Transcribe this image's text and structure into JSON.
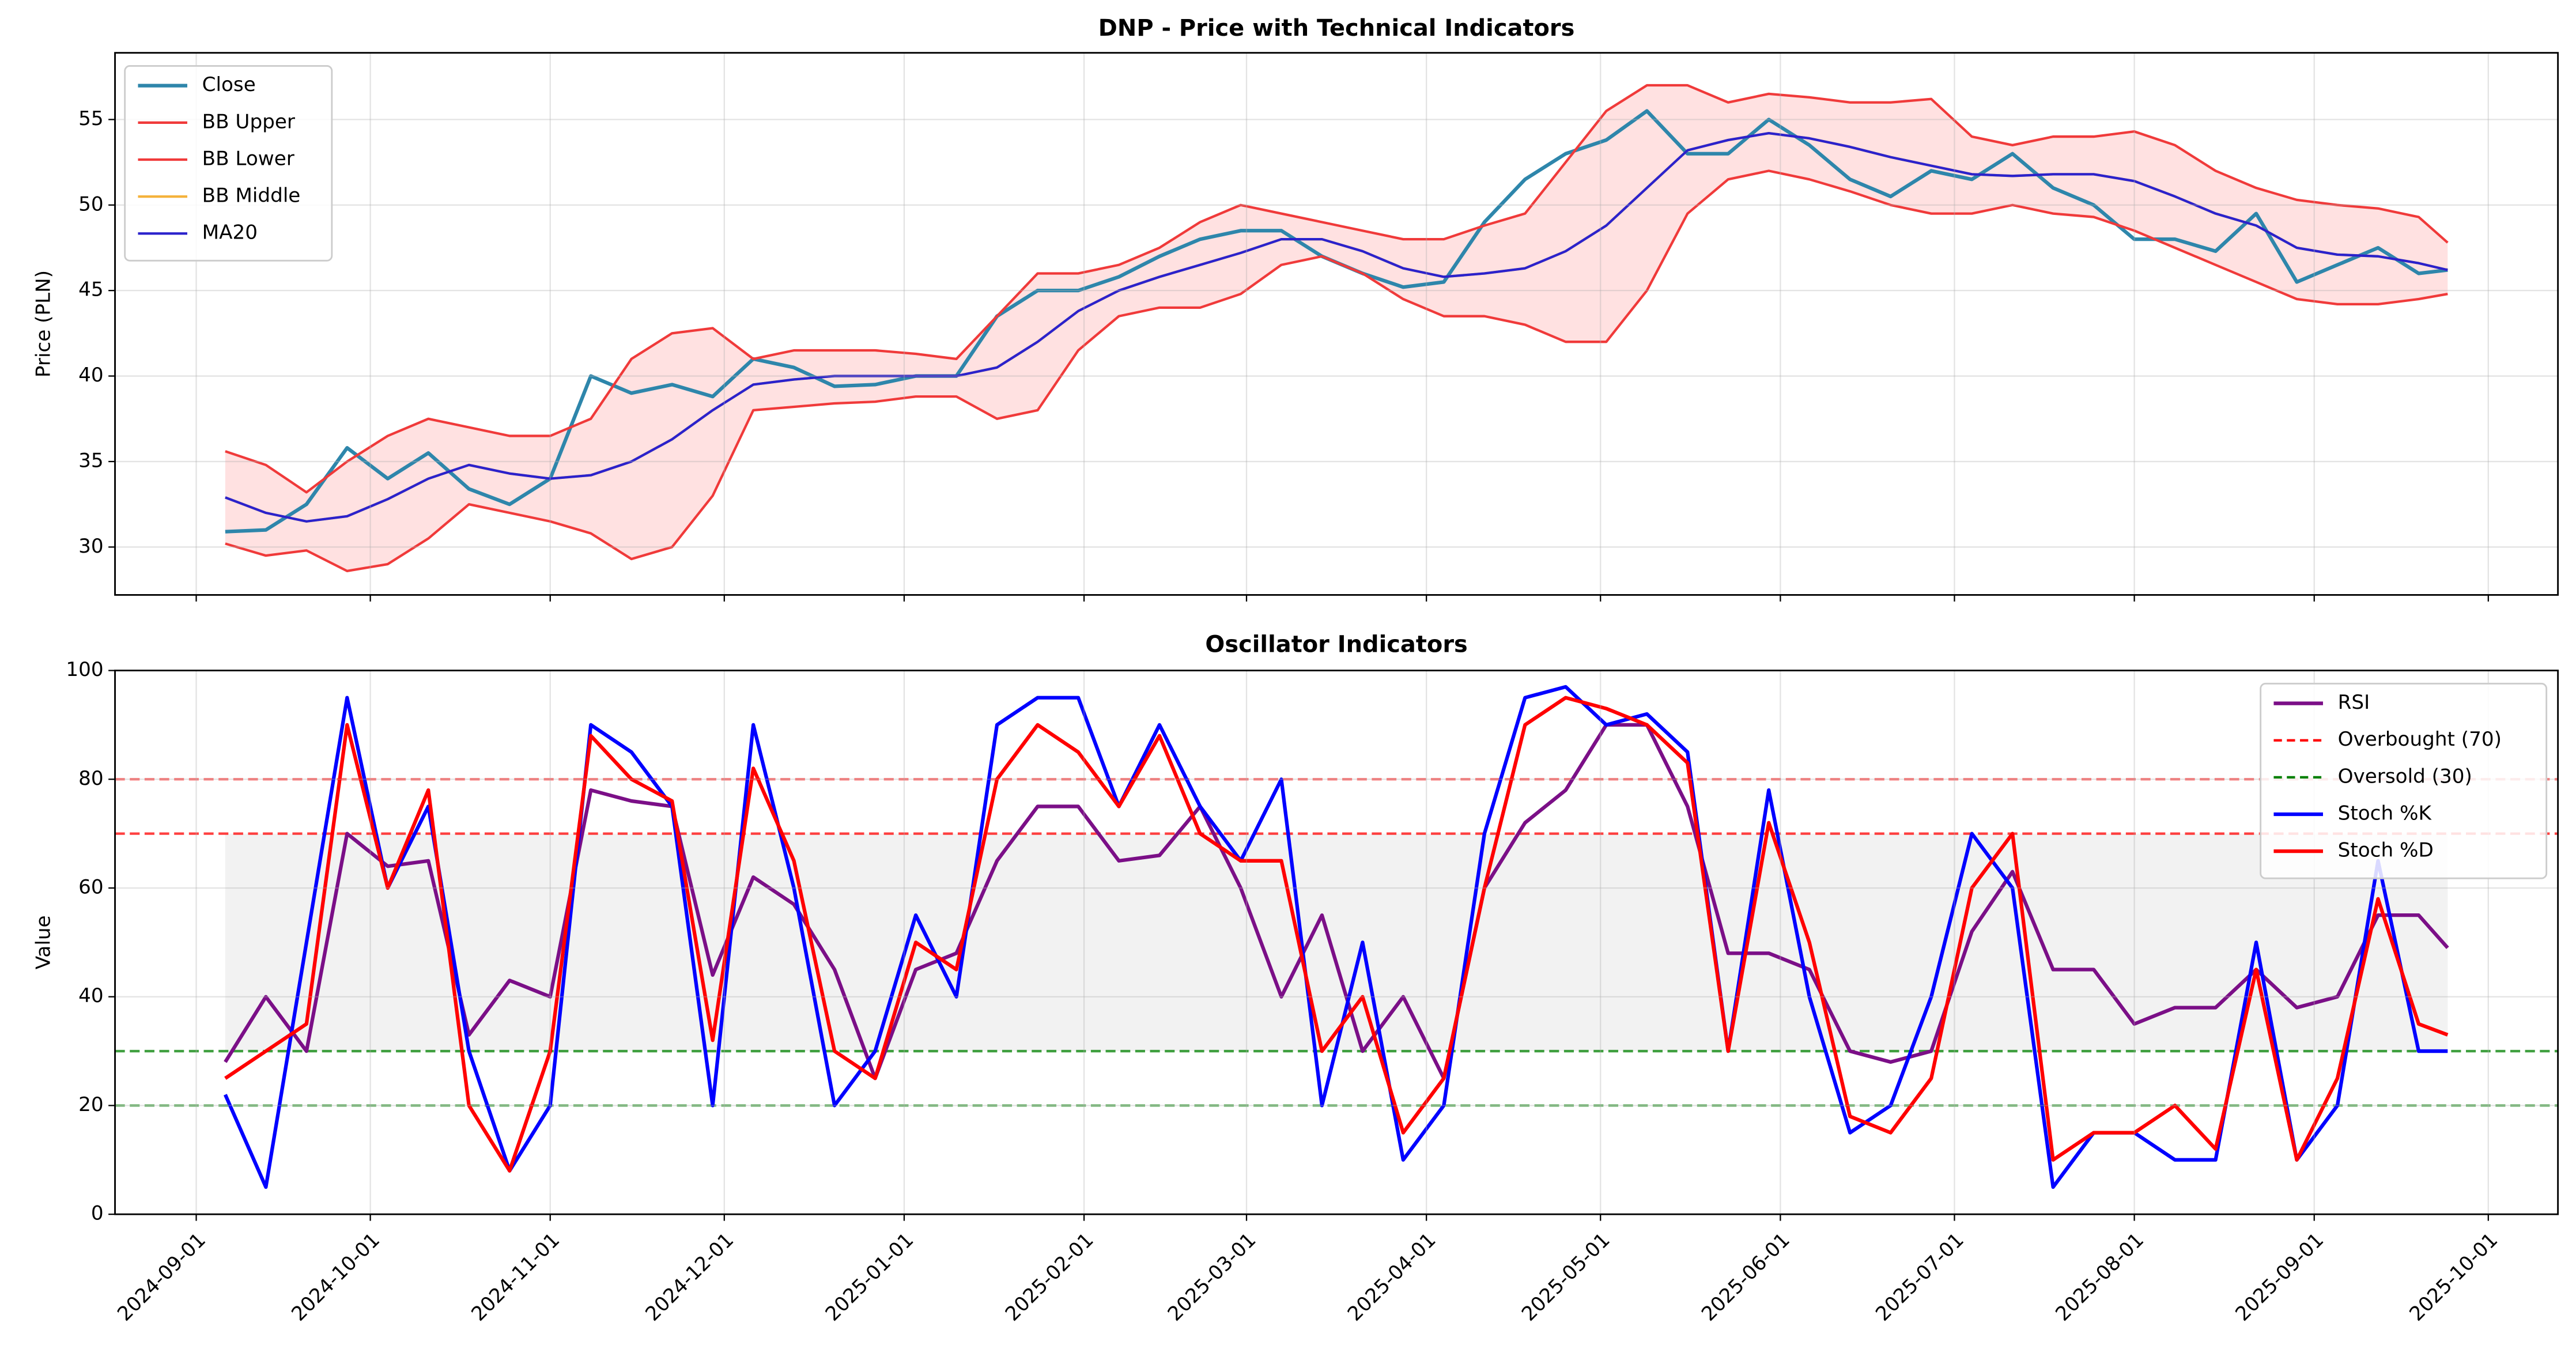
{
  "chart_data": [
    {
      "type": "line",
      "title": "DNP - Price with Technical Indicators",
      "ylabel": "Price (PLN)",
      "x": [
        "2024-09-06",
        "2024-09-13",
        "2024-09-20",
        "2024-09-27",
        "2024-10-04",
        "2024-10-11",
        "2024-10-18",
        "2024-10-25",
        "2024-11-01",
        "2024-11-08",
        "2024-11-15",
        "2024-11-22",
        "2024-11-29",
        "2024-12-06",
        "2024-12-13",
        "2024-12-20",
        "2024-12-27",
        "2025-01-03",
        "2025-01-10",
        "2025-01-17",
        "2025-01-24",
        "2025-01-31",
        "2025-02-07",
        "2025-02-14",
        "2025-02-21",
        "2025-02-28",
        "2025-03-07",
        "2025-03-14",
        "2025-03-21",
        "2025-03-28",
        "2025-04-04",
        "2025-04-11",
        "2025-04-18",
        "2025-04-25",
        "2025-05-02",
        "2025-05-09",
        "2025-05-16",
        "2025-05-23",
        "2025-05-30",
        "2025-06-06",
        "2025-06-13",
        "2025-06-20",
        "2025-06-27",
        "2025-07-04",
        "2025-07-11",
        "2025-07-18",
        "2025-07-25",
        "2025-08-01",
        "2025-08-08",
        "2025-08-15",
        "2025-08-22",
        "2025-08-29",
        "2025-09-05",
        "2025-09-12",
        "2025-09-19",
        "2025-09-24"
      ],
      "series": [
        {
          "name": "Close",
          "color": "#2e86ab",
          "width": 2.2,
          "values": [
            30.9,
            31.0,
            32.5,
            35.8,
            34.0,
            35.5,
            33.4,
            32.5,
            34.0,
            40.0,
            39.0,
            39.5,
            38.8,
            41.0,
            40.5,
            39.4,
            39.5,
            40.0,
            40.0,
            43.5,
            45.0,
            45.0,
            45.8,
            47.0,
            48.0,
            48.5,
            48.5,
            47.0,
            46.0,
            45.2,
            45.5,
            49.0,
            51.5,
            53.0,
            53.8,
            55.5,
            53.0,
            53.0,
            55.0,
            53.5,
            51.5,
            50.5,
            52.0,
            51.5,
            53.0,
            51.0,
            50.0,
            48.0,
            48.0,
            47.3,
            49.5,
            45.5,
            46.5,
            47.5,
            46.0,
            46.2
          ]
        },
        {
          "name": "BB Upper",
          "color": "#f03a3a",
          "width": 1.5,
          "values": [
            35.6,
            34.8,
            33.2,
            35.0,
            36.5,
            37.5,
            37.0,
            36.5,
            36.5,
            37.5,
            41.0,
            42.5,
            42.8,
            41.0,
            41.5,
            41.5,
            41.5,
            41.3,
            41.0,
            43.5,
            46.0,
            46.0,
            46.5,
            47.5,
            49.0,
            50.0,
            49.5,
            49.0,
            48.5,
            48.0,
            48.0,
            48.8,
            49.5,
            52.5,
            55.5,
            57.0,
            57.0,
            56.0,
            56.5,
            56.3,
            56.0,
            56.0,
            56.2,
            54.0,
            53.5,
            54.0,
            54.0,
            54.3,
            53.5,
            52.0,
            51.0,
            50.3,
            50.0,
            49.8,
            49.3,
            47.8
          ]
        },
        {
          "name": "BB Lower",
          "color": "#f03a3a",
          "width": 1.5,
          "values": [
            30.2,
            29.5,
            29.8,
            28.6,
            29.0,
            30.5,
            32.5,
            32.0,
            31.5,
            30.8,
            29.3,
            30.0,
            33.0,
            38.0,
            38.2,
            38.4,
            38.5,
            38.8,
            38.8,
            37.5,
            38.0,
            41.5,
            43.5,
            44.0,
            44.0,
            44.8,
            46.5,
            47.0,
            46.0,
            44.5,
            43.5,
            43.5,
            43.0,
            42.0,
            42.0,
            45.0,
            49.5,
            51.5,
            52.0,
            51.5,
            50.8,
            50.0,
            49.5,
            49.5,
            50.0,
            49.5,
            49.3,
            48.5,
            47.5,
            46.5,
            45.5,
            44.5,
            44.2,
            44.2,
            44.5,
            44.8
          ]
        },
        {
          "name": "BB Middle",
          "color": "#f5b23c",
          "width": 1.5,
          "values": [
            32.9,
            32.0,
            31.5,
            31.8,
            32.8,
            34.0,
            34.8,
            34.3,
            34.0,
            34.2,
            35.0,
            36.3,
            38.0,
            39.5,
            39.8,
            40.0,
            40.0,
            40.0,
            40.0,
            40.5,
            42.0,
            43.8,
            45.0,
            45.8,
            46.5,
            47.2,
            48.0,
            48.0,
            47.3,
            46.3,
            45.8,
            46.0,
            46.3,
            47.3,
            48.8,
            51.0,
            53.2,
            53.8,
            54.2,
            53.9,
            53.4,
            52.8,
            52.3,
            51.8,
            51.7,
            51.8,
            51.8,
            51.4,
            50.5,
            49.5,
            48.8,
            47.5,
            47.1,
            47.0,
            46.6,
            46.2
          ]
        },
        {
          "name": "MA20",
          "color": "#2b22cc",
          "width": 1.5,
          "values": [
            32.9,
            32.0,
            31.5,
            31.8,
            32.8,
            34.0,
            34.8,
            34.3,
            34.0,
            34.2,
            35.0,
            36.3,
            38.0,
            39.5,
            39.8,
            40.0,
            40.0,
            40.0,
            40.0,
            40.5,
            42.0,
            43.8,
            45.0,
            45.8,
            46.5,
            47.2,
            48.0,
            48.0,
            47.3,
            46.3,
            45.8,
            46.0,
            46.3,
            47.3,
            48.8,
            51.0,
            53.2,
            53.8,
            54.2,
            53.9,
            53.4,
            52.8,
            52.3,
            51.8,
            51.7,
            51.8,
            51.8,
            51.4,
            50.5,
            49.5,
            48.8,
            47.5,
            47.1,
            47.0,
            46.6,
            46.2
          ]
        }
      ],
      "band_fill": "#ffdede",
      "xlim": [
        "2024-08-18",
        "2025-10-13"
      ],
      "xticks": [
        "2024-09-01",
        "2024-10-01",
        "2024-11-01",
        "2024-12-01",
        "2025-01-01",
        "2025-02-01",
        "2025-03-01",
        "2025-04-01",
        "2025-05-01",
        "2025-06-01",
        "2025-07-01",
        "2025-08-01",
        "2025-09-01",
        "2025-10-01"
      ],
      "ylim": [
        27.2,
        58.9
      ],
      "yticks": [
        30,
        35,
        40,
        45,
        50,
        55
      ],
      "grid": true,
      "legend": "upper left"
    },
    {
      "type": "line",
      "title": "Oscillator Indicators",
      "ylabel": "Value",
      "x": [
        "2024-09-06",
        "2024-09-13",
        "2024-09-20",
        "2024-09-27",
        "2024-10-04",
        "2024-10-11",
        "2024-10-18",
        "2024-10-25",
        "2024-11-01",
        "2024-11-08",
        "2024-11-15",
        "2024-11-22",
        "2024-11-29",
        "2024-12-06",
        "2024-12-13",
        "2024-12-20",
        "2024-12-27",
        "2025-01-03",
        "2025-01-10",
        "2025-01-17",
        "2025-01-24",
        "2025-01-31",
        "2025-02-07",
        "2025-02-14",
        "2025-02-21",
        "2025-02-28",
        "2025-03-07",
        "2025-03-14",
        "2025-03-21",
        "2025-03-28",
        "2025-04-04",
        "2025-04-11",
        "2025-04-18",
        "2025-04-25",
        "2025-05-02",
        "2025-05-09",
        "2025-05-16",
        "2025-05-23",
        "2025-05-30",
        "2025-06-06",
        "2025-06-13",
        "2025-06-20",
        "2025-06-27",
        "2025-07-04",
        "2025-07-11",
        "2025-07-18",
        "2025-07-25",
        "2025-08-01",
        "2025-08-08",
        "2025-08-15",
        "2025-08-22",
        "2025-08-29",
        "2025-09-05",
        "2025-09-12",
        "2025-09-19",
        "2025-09-24"
      ],
      "series": [
        {
          "name": "RSI",
          "color": "#7b0f87",
          "width": 2.2,
          "values": [
            28,
            40,
            30,
            70,
            64,
            65,
            33,
            43,
            40,
            78,
            76,
            75,
            44,
            62,
            57,
            45,
            25,
            45,
            48,
            65,
            75,
            75,
            65,
            66,
            75,
            60,
            40,
            55,
            30,
            40,
            25,
            60,
            72,
            78,
            90,
            90,
            75,
            48,
            48,
            45,
            30,
            28,
            30,
            52,
            63,
            45,
            45,
            35,
            38,
            38,
            45,
            38,
            40,
            55,
            55,
            49
          ]
        },
        {
          "name": "Stoch %K",
          "color": "#0000ff",
          "width": 2.2,
          "values": [
            22,
            5,
            50,
            95,
            60,
            75,
            30,
            8,
            20,
            90,
            85,
            75,
            20,
            90,
            60,
            20,
            30,
            55,
            40,
            90,
            95,
            95,
            75,
            90,
            75,
            65,
            80,
            20,
            50,
            10,
            20,
            70,
            95,
            97,
            90,
            92,
            85,
            30,
            78,
            40,
            15,
            20,
            40,
            70,
            60,
            5,
            15,
            15,
            10,
            10,
            50,
            10,
            20,
            65,
            30,
            30
          ]
        },
        {
          "name": "Stoch %D",
          "color": "#ff0000",
          "width": 2.2,
          "values": [
            25,
            30,
            35,
            90,
            60,
            78,
            20,
            8,
            30,
            88,
            80,
            76,
            32,
            82,
            65,
            30,
            25,
            50,
            45,
            80,
            90,
            85,
            75,
            88,
            70,
            65,
            65,
            30,
            40,
            15,
            25,
            60,
            90,
            95,
            93,
            90,
            83,
            30,
            72,
            50,
            18,
            15,
            25,
            60,
            70,
            10,
            15,
            15,
            20,
            12,
            45,
            10,
            25,
            58,
            35,
            33
          ]
        }
      ],
      "hlines": [
        {
          "name": "Overbought (70)",
          "value": 70,
          "color": "#ff0000"
        },
        {
          "name": "Oversold (30)",
          "value": 30,
          "color": "#008000"
        },
        {
          "value": 80,
          "color": "#ff0000"
        },
        {
          "value": 20,
          "color": "#008000"
        }
      ],
      "shade": {
        "range": [
          30,
          70
        ],
        "color": "#808080"
      },
      "xlim": [
        "2024-08-18",
        "2025-10-13"
      ],
      "xticks": [
        "2024-09-01",
        "2024-10-01",
        "2024-11-01",
        "2024-12-01",
        "2025-01-01",
        "2025-02-01",
        "2025-03-01",
        "2025-04-01",
        "2025-05-01",
        "2025-06-01",
        "2025-07-01",
        "2025-08-01",
        "2025-09-01",
        "2025-10-01"
      ],
      "ylim": [
        0,
        100
      ],
      "yticks": [
        0,
        20,
        40,
        60,
        80,
        100
      ],
      "grid": true,
      "legend": "upper right"
    }
  ]
}
